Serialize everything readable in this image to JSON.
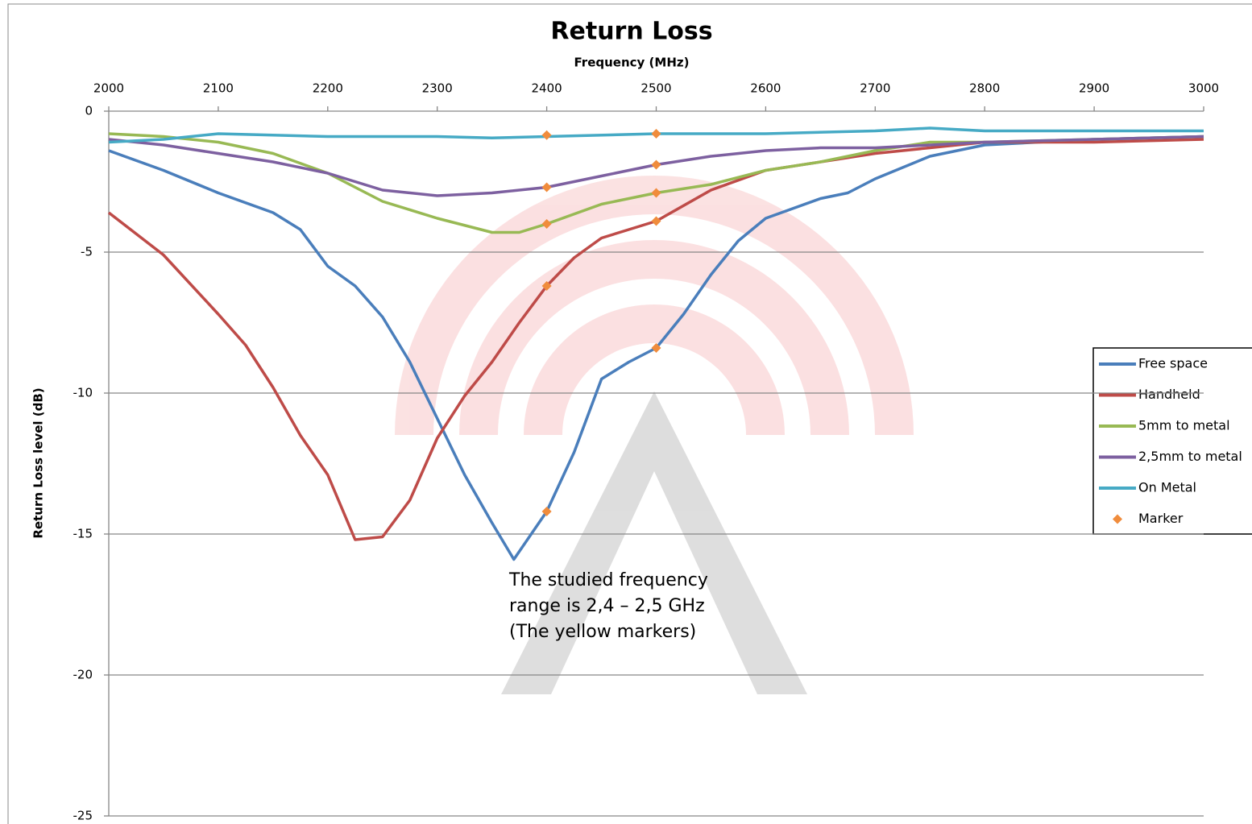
{
  "chart_data": {
    "type": "line",
    "title": "Return Loss",
    "x_label": "Frequency (MHz)",
    "y_label": "Return Loss level (dB)",
    "annotation": [
      "The studied frequency",
      "range is 2,4 – 2,5 GHz",
      "(The yellow markers)"
    ],
    "xlim": [
      2000,
      3000
    ],
    "xticks": [
      2000,
      2100,
      2200,
      2300,
      2400,
      2500,
      2600,
      2700,
      2800,
      2900,
      3000
    ],
    "ylim": [
      -25,
      0
    ],
    "yticks": [
      0,
      -5,
      -10,
      -15,
      -20,
      -25
    ],
    "grid": true,
    "legend": "right",
    "series": [
      {
        "name": "Free space",
        "color": "#4a7ebb",
        "x": [
          2000,
          2050,
          2100,
          2150,
          2175,
          2200,
          2225,
          2250,
          2275,
          2300,
          2325,
          2350,
          2370,
          2400,
          2425,
          2450,
          2475,
          2500,
          2525,
          2550,
          2575,
          2600,
          2650,
          2675,
          2700,
          2750,
          2800,
          2900,
          3000
        ],
        "values": [
          -1.4,
          -2.1,
          -2.9,
          -3.6,
          -4.2,
          -5.5,
          -6.2,
          -7.3,
          -8.9,
          -10.9,
          -12.9,
          -14.6,
          -15.9,
          -14.2,
          -12.1,
          -9.5,
          -8.9,
          -8.4,
          -7.2,
          -5.8,
          -4.6,
          -3.8,
          -3.1,
          -2.9,
          -2.4,
          -1.6,
          -1.2,
          -1.0,
          -0.9
        ]
      },
      {
        "name": "Handheld",
        "color": "#be4b48",
        "x": [
          2000,
          2050,
          2100,
          2125,
          2150,
          2175,
          2200,
          2225,
          2250,
          2275,
          2300,
          2325,
          2350,
          2375,
          2400,
          2425,
          2450,
          2475,
          2500,
          2550,
          2600,
          2650,
          2700,
          2750,
          2800,
          2900,
          3000
        ],
        "values": [
          -3.6,
          -5.1,
          -7.2,
          -8.3,
          -9.8,
          -11.5,
          -12.9,
          -15.2,
          -15.1,
          -13.8,
          -11.6,
          -10.1,
          -8.9,
          -7.5,
          -6.2,
          -5.2,
          -4.5,
          -4.2,
          -3.9,
          -2.8,
          -2.1,
          -1.8,
          -1.5,
          -1.3,
          -1.1,
          -1.1,
          -1.0
        ]
      },
      {
        "name": "5mm to metal",
        "color": "#98b954",
        "x": [
          2000,
          2050,
          2100,
          2150,
          2200,
          2250,
          2300,
          2350,
          2375,
          2400,
          2450,
          2500,
          2550,
          2600,
          2650,
          2700,
          2750,
          2800,
          2900,
          3000
        ],
        "values": [
          -0.8,
          -0.9,
          -1.1,
          -1.5,
          -2.2,
          -3.2,
          -3.8,
          -4.3,
          -4.3,
          -4.0,
          -3.3,
          -2.9,
          -2.6,
          -2.1,
          -1.8,
          -1.4,
          -1.1,
          -1.1,
          -1.0,
          -0.9
        ]
      },
      {
        "name": "2,5mm to metal",
        "color": "#7d60a0",
        "x": [
          2000,
          2050,
          2100,
          2150,
          2200,
          2250,
          2300,
          2350,
          2400,
          2450,
          2500,
          2550,
          2600,
          2650,
          2700,
          2800,
          2900,
          3000
        ],
        "values": [
          -1.0,
          -1.2,
          -1.5,
          -1.8,
          -2.2,
          -2.8,
          -3.0,
          -2.9,
          -2.7,
          -2.3,
          -1.9,
          -1.6,
          -1.4,
          -1.3,
          -1.3,
          -1.1,
          -1.0,
          -0.9
        ]
      },
      {
        "name": "On Metal",
        "color": "#46aac5",
        "x": [
          2000,
          2050,
          2100,
          2200,
          2300,
          2350,
          2400,
          2500,
          2600,
          2700,
          2750,
          2800,
          2900,
          3000
        ],
        "values": [
          -1.1,
          -1.0,
          -0.8,
          -0.9,
          -0.9,
          -0.95,
          -0.9,
          -0.8,
          -0.8,
          -0.7,
          -0.6,
          -0.7,
          -0.7,
          -0.7
        ]
      },
      {
        "name": "Marker",
        "color": "#f08c3c",
        "mode": "markers",
        "x": [
          2400,
          2400,
          2400,
          2400,
          2400,
          2500,
          2500,
          2500,
          2500,
          2500
        ],
        "values": [
          -0.85,
          -2.7,
          -4.0,
          -6.2,
          -14.2,
          -0.8,
          -1.9,
          -2.9,
          -3.9,
          -8.4
        ]
      }
    ]
  }
}
